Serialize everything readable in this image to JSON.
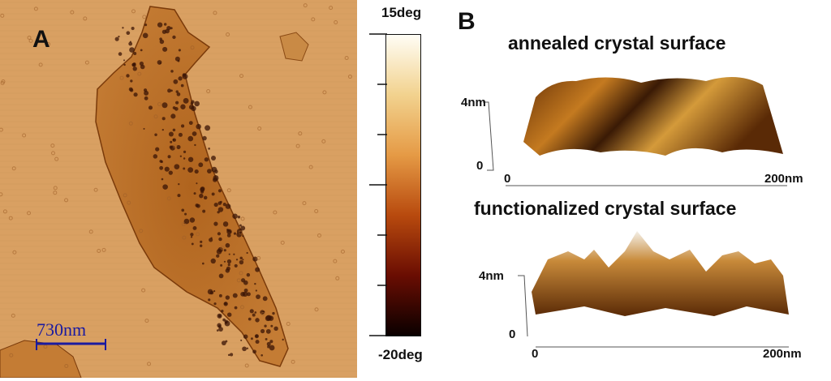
{
  "panel_a": {
    "label": "A",
    "scale_bar": "730nm",
    "scale_bar_color": "#1a1aa0",
    "background_color": "#d9a062"
  },
  "colorbar": {
    "max_label": "15deg",
    "min_label": "-20deg",
    "colors": [
      "#fffdf5",
      "#f2d28e",
      "#e59a45",
      "#b84a0e",
      "#6a0d02",
      "#0a0000"
    ]
  },
  "panel_b": {
    "label": "B",
    "top": {
      "title": "annealed crystal surface",
      "z_label": "4nm",
      "z_zero": "0",
      "x_start": "0",
      "x_end": "200nm"
    },
    "bottom": {
      "title": "functionalized crystal surface",
      "z_label": "4nm",
      "z_zero": "0",
      "x_start": "0",
      "x_end": "200nm"
    }
  }
}
